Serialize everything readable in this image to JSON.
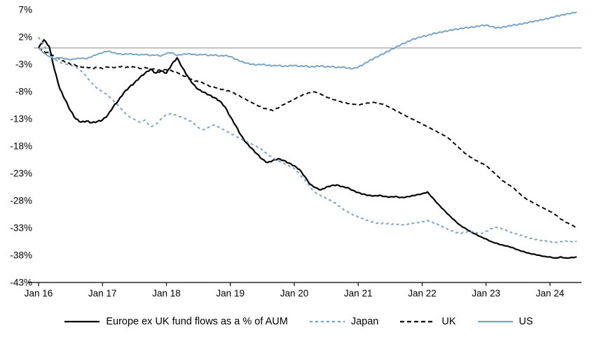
{
  "chart_data": {
    "type": "line",
    "title": "",
    "xlabel": "",
    "ylabel": "",
    "ylim": [
      -43,
      7
    ],
    "grid": false,
    "zero_line": true,
    "legend_position": "bottom",
    "y_ticks": [
      7,
      2,
      -3,
      -8,
      -13,
      -18,
      -23,
      -28,
      -33,
      -38,
      -43
    ],
    "y_tick_suffix": "%",
    "x_tick_labels": [
      "Jan 16",
      "Jan 17",
      "Jan 18",
      "Jan 19",
      "Jan 20",
      "Jan 21",
      "Jan 22",
      "Jan 23",
      "Jan 24"
    ],
    "x_tick_indices": [
      0,
      12,
      24,
      36,
      48,
      60,
      72,
      84,
      96
    ],
    "points_per_year": 12,
    "series": [
      {
        "name": "Europe ex UK fund flows as a % of AUM",
        "color": "#000000",
        "style": "solid",
        "dash": "",
        "values": [
          0.0,
          1.5,
          0.3,
          -4.0,
          -7.5,
          -9.5,
          -11.5,
          -13.0,
          -13.6,
          -13.4,
          -13.7,
          -13.5,
          -13.2,
          -12.3,
          -10.8,
          -9.6,
          -8.2,
          -7.2,
          -6.4,
          -5.4,
          -4.6,
          -3.9,
          -4.6,
          -4.2,
          -4.6,
          -3.0,
          -1.8,
          -3.6,
          -5.2,
          -6.6,
          -7.6,
          -8.1,
          -8.6,
          -9.1,
          -9.7,
          -10.8,
          -12.6,
          -14.2,
          -16.0,
          -17.4,
          -18.4,
          -19.4,
          -20.4,
          -21.0,
          -20.6,
          -20.3,
          -20.6,
          -21.1,
          -21.6,
          -22.3,
          -23.6,
          -25.0,
          -25.6,
          -26.0,
          -25.5,
          -25.2,
          -25.1,
          -25.4,
          -25.6,
          -26.1,
          -26.5,
          -26.8,
          -27.0,
          -27.1,
          -27.0,
          -27.2,
          -27.3,
          -27.2,
          -27.4,
          -27.3,
          -27.1,
          -26.9,
          -26.7,
          -26.4,
          -27.5,
          -28.6,
          -29.6,
          -30.6,
          -31.5,
          -32.4,
          -33.0,
          -33.6,
          -34.1,
          -34.6,
          -35.0,
          -35.5,
          -35.8,
          -36.1,
          -36.3,
          -36.6,
          -37.0,
          -37.3,
          -37.6,
          -37.8,
          -38.0,
          -38.2,
          -38.3,
          -38.5,
          -38.3,
          -38.5,
          -38.4,
          -38.3
        ]
      },
      {
        "name": "Japan",
        "color": "#76a2c8",
        "style": "dashed",
        "dash": "4 4",
        "values": [
          2.0,
          0.5,
          -1.0,
          -2.0,
          -2.6,
          -2.9,
          -3.1,
          -3.4,
          -4.2,
          -5.2,
          -6.4,
          -7.4,
          -8.0,
          -8.6,
          -9.6,
          -10.6,
          -11.6,
          -12.6,
          -13.1,
          -13.6,
          -13.2,
          -14.4,
          -14.0,
          -13.0,
          -12.2,
          -12.0,
          -12.4,
          -12.7,
          -13.1,
          -13.6,
          -14.6,
          -15.0,
          -14.5,
          -14.1,
          -14.6,
          -15.1,
          -15.6,
          -16.1,
          -16.6,
          -17.1,
          -17.6,
          -18.1,
          -18.7,
          -19.5,
          -20.1,
          -20.6,
          -21.1,
          -21.6,
          -22.1,
          -23.1,
          -24.2,
          -25.5,
          -26.5,
          -27.1,
          -27.6,
          -28.1,
          -28.6,
          -29.4,
          -30.0,
          -30.6,
          -31.0,
          -31.4,
          -31.8,
          -32.0,
          -32.2,
          -32.1,
          -32.3,
          -32.2,
          -32.4,
          -32.3,
          -32.1,
          -32.0,
          -31.8,
          -31.6,
          -32.0,
          -32.4,
          -32.9,
          -33.4,
          -33.7,
          -34.0,
          -33.8,
          -33.5,
          -33.8,
          -34.0,
          -33.6,
          -33.1,
          -32.9,
          -33.2,
          -33.6,
          -34.0,
          -34.2,
          -34.5,
          -34.8,
          -35.0,
          -35.2,
          -35.3,
          -35.5,
          -35.6,
          -35.5,
          -35.4,
          -35.5,
          -35.5
        ]
      },
      {
        "name": "UK",
        "color": "#000000",
        "style": "dashed",
        "dash": "6 4",
        "values": [
          0.0,
          -0.6,
          -1.1,
          -1.6,
          -2.1,
          -2.6,
          -3.0,
          -3.2,
          -3.5,
          -3.5,
          -3.8,
          -3.6,
          -3.8,
          -3.5,
          -3.6,
          -3.4,
          -3.5,
          -3.6,
          -3.5,
          -3.8,
          -3.6,
          -3.8,
          -4.0,
          -4.2,
          -4.0,
          -4.2,
          -4.5,
          -5.0,
          -5.5,
          -6.0,
          -6.2,
          -6.5,
          -7.0,
          -7.2,
          -7.5,
          -7.8,
          -8.0,
          -8.5,
          -9.0,
          -9.5,
          -10.0,
          -10.5,
          -11.0,
          -11.3,
          -11.5,
          -11.0,
          -10.4,
          -9.9,
          -9.4,
          -8.9,
          -8.5,
          -8.2,
          -8.1,
          -8.5,
          -9.0,
          -9.4,
          -9.7,
          -10.0,
          -10.2,
          -10.3,
          -10.5,
          -10.3,
          -10.1,
          -10.0,
          -10.2,
          -10.5,
          -11.0,
          -11.5,
          -12.0,
          -12.5,
          -13.0,
          -13.5,
          -14.0,
          -14.5,
          -15.0,
          -15.5,
          -16.0,
          -16.6,
          -17.5,
          -18.4,
          -19.3,
          -20.0,
          -20.6,
          -21.1,
          -21.6,
          -22.5,
          -23.4,
          -24.3,
          -25.0,
          -25.6,
          -26.5,
          -27.4,
          -28.0,
          -28.5,
          -29.0,
          -29.5,
          -30.0,
          -30.6,
          -31.4,
          -32.0,
          -32.5,
          -33.0
        ]
      },
      {
        "name": "US",
        "color": "#76a2c8",
        "style": "solid",
        "dash": "",
        "values": [
          0.0,
          -1.0,
          -1.6,
          -2.0,
          -1.8,
          -2.0,
          -2.2,
          -2.0,
          -1.9,
          -2.0,
          -1.6,
          -1.2,
          -0.9,
          -0.6,
          -0.9,
          -1.1,
          -1.2,
          -1.1,
          -1.2,
          -1.3,
          -1.2,
          -1.4,
          -1.3,
          -1.5,
          -1.0,
          -0.9,
          -1.4,
          -1.2,
          -1.1,
          -1.2,
          -1.3,
          -1.2,
          -1.4,
          -1.3,
          -1.5,
          -1.4,
          -1.6,
          -2.1,
          -2.5,
          -2.8,
          -3.0,
          -3.1,
          -3.0,
          -3.2,
          -3.3,
          -3.2,
          -3.4,
          -3.3,
          -3.2,
          -3.4,
          -3.3,
          -3.5,
          -3.4,
          -3.3,
          -3.5,
          -3.4,
          -3.6,
          -3.5,
          -3.7,
          -3.8,
          -3.5,
          -3.0,
          -2.4,
          -1.9,
          -1.4,
          -0.9,
          -0.4,
          0.1,
          0.6,
          1.0,
          1.5,
          1.8,
          2.1,
          2.3,
          2.6,
          2.8,
          3.0,
          3.2,
          3.4,
          3.5,
          3.7,
          3.8,
          3.9,
          4.1,
          4.2,
          3.9,
          3.7,
          3.8,
          4.0,
          4.2,
          4.3,
          4.5,
          4.7,
          4.9,
          5.1,
          5.3,
          5.5,
          5.8,
          6.0,
          6.2,
          6.4,
          6.6
        ]
      }
    ],
    "colors": {
      "axis": "#000000",
      "zero_line": "#8c8c8c",
      "blue": "#76a2c8",
      "black": "#000000"
    }
  }
}
